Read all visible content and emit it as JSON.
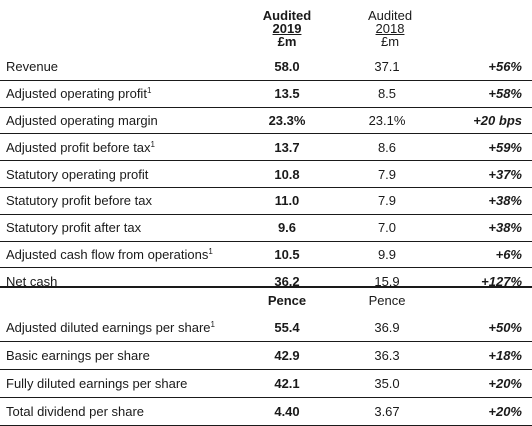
{
  "header": {
    "col2019": {
      "line1": "Audited",
      "line2": "2019",
      "line3": "£m"
    },
    "col2018": {
      "line1": "Audited",
      "line2": "2018",
      "line3": "£m"
    }
  },
  "rows": [
    {
      "label": "Revenue",
      "sup": "",
      "v2019": "58.0",
      "v2018": "37.1",
      "change": "+56%"
    },
    {
      "label": "Adjusted operating profit",
      "sup": "1",
      "v2019": "13.5",
      "v2018": "8.5",
      "change": "+58%"
    },
    {
      "label": "Adjusted operating margin",
      "sup": "",
      "v2019": "23.3%",
      "v2018": "23.1%",
      "change": "+20 bps"
    },
    {
      "label": "Adjusted profit before tax",
      "sup": "1",
      "v2019": "13.7",
      "v2018": "8.6",
      "change": "+59%"
    },
    {
      "label": "Statutory operating profit",
      "sup": "",
      "v2019": "10.8",
      "v2018": "7.9",
      "change": "+37%"
    },
    {
      "label": "Statutory profit before tax",
      "sup": "",
      "v2019": "11.0",
      "v2018": "7.9",
      "change": "+38%"
    },
    {
      "label": "Statutory profit after tax",
      "sup": "",
      "v2019": "9.6",
      "v2018": "7.0",
      "change": "+38%"
    },
    {
      "label": "Adjusted cash flow from operations",
      "sup": "1",
      "v2019": "10.5",
      "v2018": "9.9",
      "change": "+6%"
    },
    {
      "label": "Net cash",
      "sup": "",
      "v2019": "36.2",
      "v2018": "15.9",
      "change": "+127%"
    }
  ],
  "pence_header": {
    "col2019": "Pence",
    "col2018": "Pence"
  },
  "pence_rows": [
    {
      "label": "Adjusted diluted earnings per share",
      "sup": "1",
      "v2019": "55.4",
      "v2018": "36.9",
      "change": "+50%"
    },
    {
      "label": "Basic earnings per share",
      "sup": "",
      "v2019": "42.9",
      "v2018": "36.3",
      "change": "+18%"
    },
    {
      "label": "Fully diluted earnings per share",
      "sup": "",
      "v2019": "42.1",
      "v2018": "35.0",
      "change": "+20%"
    },
    {
      "label": "Total dividend per share",
      "sup": "",
      "v2019": "4.40",
      "v2018": "3.67",
      "change": "+20%"
    }
  ]
}
